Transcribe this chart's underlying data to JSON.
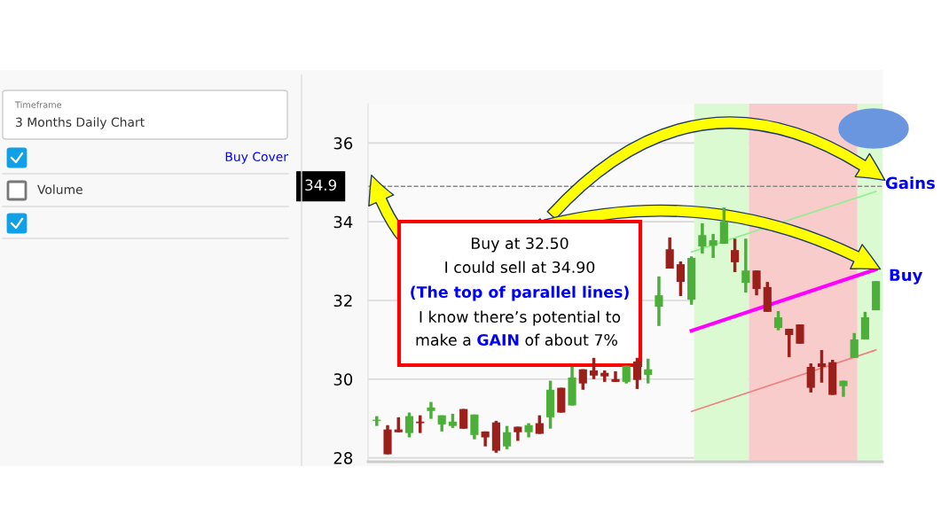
{
  "chart_data": {
    "type": "candlestick",
    "categories": [
      null,
      null,
      null,
      null,
      null,
      null,
      null,
      null,
      null,
      null,
      null,
      null,
      null,
      null,
      null,
      null,
      null,
      null,
      null,
      null,
      null,
      null,
      null,
      null,
      null,
      null,
      null,
      null,
      null,
      null,
      null,
      null,
      null,
      null,
      null,
      null,
      null,
      null,
      null,
      null,
      null,
      null,
      null,
      null,
      null,
      null,
      null
    ],
    "ohlc": [
      [
        28.94,
        29.06,
        28.81,
        28.97
      ],
      [
        28.72,
        28.83,
        28.09,
        28.09
      ],
      [
        28.72,
        29.03,
        28.65,
        28.65
      ],
      [
        28.63,
        29.15,
        28.52,
        29.06
      ],
      [
        28.92,
        29.08,
        28.63,
        28.88
      ],
      [
        29.19,
        29.42,
        28.99,
        29.28
      ],
      [
        28.85,
        29.08,
        28.67,
        29.08
      ],
      [
        28.81,
        29.12,
        28.76,
        28.92
      ],
      [
        29.24,
        29.24,
        28.74,
        28.74
      ],
      [
        28.58,
        29.1,
        28.47,
        29.1
      ],
      [
        28.67,
        28.67,
        28.29,
        28.52
      ],
      [
        28.9,
        28.94,
        28.13,
        28.18
      ],
      [
        28.29,
        28.81,
        28.22,
        28.65
      ],
      [
        28.79,
        28.79,
        28.43,
        28.65
      ],
      [
        28.65,
        28.88,
        28.52,
        28.83
      ],
      [
        28.88,
        29.08,
        28.61,
        28.61
      ],
      [
        29.03,
        29.96,
        28.74,
        29.73
      ],
      [
        29.78,
        29.78,
        29.15,
        29.15
      ],
      [
        29.33,
        30.31,
        29.33,
        30.04
      ],
      [
        30.25,
        30.25,
        29.73,
        29.89
      ],
      [
        30.22,
        30.54,
        30.0,
        30.09
      ],
      [
        30.16,
        30.22,
        29.93,
        30.07
      ],
      [
        30.0,
        30.2,
        29.93,
        29.93
      ],
      [
        29.93,
        30.34,
        29.89,
        30.34
      ],
      [
        30.45,
        30.54,
        29.75,
        29.98
      ],
      [
        30.11,
        30.52,
        29.89,
        30.25
      ],
      [
        31.84,
        32.61,
        31.35,
        32.13
      ],
      [
        33.3,
        33.6,
        32.81,
        32.81
      ],
      [
        32.92,
        32.99,
        32.11,
        32.47
      ],
      [
        32.02,
        33.12,
        31.89,
        33.08
      ],
      [
        33.37,
        33.96,
        33.19,
        33.66
      ],
      [
        33.39,
        33.69,
        33.08,
        33.53
      ],
      [
        33.44,
        34.36,
        33.44,
        34.0
      ],
      [
        33.28,
        33.57,
        32.72,
        32.97
      ],
      [
        32.45,
        33.57,
        32.2,
        32.76
      ],
      [
        32.76,
        32.76,
        32.13,
        32.29
      ],
      [
        32.34,
        32.47,
        31.71,
        31.71
      ],
      [
        31.3,
        31.73,
        31.24,
        31.57
      ],
      [
        31.28,
        31.28,
        30.56,
        31.12
      ],
      [
        31.39,
        31.39,
        30.9,
        30.9
      ],
      [
        30.31,
        30.4,
        29.66,
        29.78
      ],
      [
        30.4,
        30.74,
        29.91,
        30.31
      ],
      [
        30.43,
        30.49,
        29.6,
        29.6
      ],
      [
        29.82,
        29.96,
        29.55,
        29.96
      ],
      [
        30.54,
        31.17,
        30.54,
        31.01
      ],
      [
        31.01,
        31.71,
        31.01,
        31.57
      ],
      [
        31.75,
        32.49,
        31.75,
        32.49
      ]
    ],
    "colors": [
      "#4caf3a",
      "#9b1f1b",
      "#9b1f1b",
      "#4caf3a",
      "#9b1f1b",
      "#4caf3a",
      "#4caf3a",
      "#4caf3a",
      "#9b1f1b",
      "#4caf3a",
      "#9b1f1b",
      "#9b1f1b",
      "#4caf3a",
      "#9b1f1b",
      "#4caf3a",
      "#9b1f1b",
      "#4caf3a",
      "#9b1f1b",
      "#4caf3a",
      "#9b1f1b",
      "#9b1f1b",
      "#9b1f1b",
      "#9b1f1b",
      "#4caf3a",
      "#9b1f1b",
      "#4caf3a",
      "#4caf3a",
      "#9b1f1b",
      "#9b1f1b",
      "#4caf3a",
      "#4caf3a",
      "#4caf3a",
      "#4caf3a",
      "#9b1f1b",
      "#4caf3a",
      "#9b1f1b",
      "#9b1f1b",
      "#4caf3a",
      "#9b1f1b",
      "#9b1f1b",
      "#9b1f1b",
      "#9b1f1b",
      "#9b1f1b",
      "#4caf3a",
      "#4caf3a",
      "#4caf3a",
      "#4caf3a"
    ],
    "series": [
      {
        "type": "line",
        "color": "#90ee90",
        "values": [
          null,
          null,
          null,
          null,
          null,
          null,
          null,
          null,
          null,
          null,
          null,
          null,
          null,
          null,
          null,
          null,
          null,
          null,
          null,
          null,
          null,
          null,
          null,
          null,
          null,
          null,
          null,
          null,
          null,
          33.23,
          null,
          null,
          null,
          null,
          null,
          null,
          null,
          null,
          null,
          null,
          null,
          null,
          null,
          null,
          null,
          null,
          34.77
        ]
      },
      {
        "type": "line",
        "color": "#ff00ff",
        "values": [
          null,
          null,
          null,
          null,
          null,
          null,
          null,
          null,
          null,
          null,
          null,
          null,
          null,
          null,
          null,
          null,
          null,
          null,
          null,
          null,
          null,
          null,
          null,
          null,
          null,
          null,
          null,
          null,
          null,
          31.23,
          null,
          null,
          null,
          null,
          null,
          null,
          null,
          null,
          null,
          null,
          null,
          null,
          null,
          null,
          null,
          null,
          32.79
        ]
      },
      {
        "type": "line",
        "color": "#f08080",
        "values": [
          null,
          null,
          null,
          null,
          null,
          null,
          null,
          null,
          null,
          null,
          null,
          null,
          null,
          null,
          null,
          null,
          null,
          null,
          null,
          null,
          null,
          null,
          null,
          null,
          null,
          null,
          null,
          null,
          null,
          29.18,
          null,
          null,
          null,
          null,
          null,
          null,
          null,
          null,
          null,
          null,
          null,
          null,
          null,
          null,
          null,
          null,
          30.74
        ]
      }
    ],
    "ylim": [
      27.9,
      37.0
    ],
    "yticks": [
      28,
      30,
      32,
      34,
      36
    ],
    "grid": "y",
    "ref_lines": [
      {
        "axis": "y",
        "value": 34.9,
        "label": "34.9",
        "color": "#888888",
        "line_style": "dashed"
      }
    ],
    "annotations": [
      "Buy at 32.50",
      "I could sell at 34.90",
      "(The top of parallel lines)",
      "I know there’s potential to",
      "make a ",
      "GAIN",
      " of about 7%",
      "Gains",
      "Buy",
      "Timeframe",
      "3 Months Daily Chart",
      "Buy Cover",
      "Volume"
    ]
  }
}
